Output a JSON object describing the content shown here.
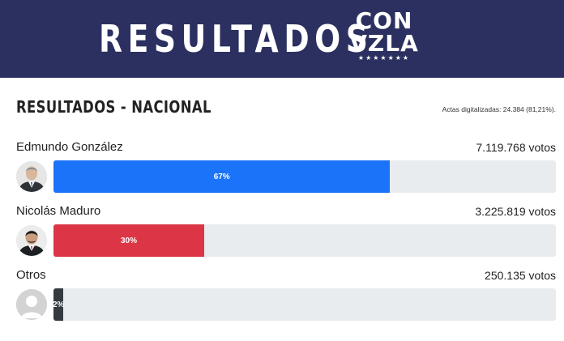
{
  "banner": {
    "title": "RESULTADOS",
    "logo_line1": "CON",
    "logo_line2": "VZLA",
    "logo_stars": "★★★★★★★",
    "background_color": "#2b3060"
  },
  "section": {
    "title": "RESULTADOS - NACIONAL",
    "actas": "Actas digitalizadas: 24.384 (81,21%)."
  },
  "candidates": [
    {
      "name": "Edmundo González",
      "votes": "7.119.768 votos",
      "percent_label": "67%",
      "percent": 67,
      "color": "#1a73f8",
      "avatar_icon": "candidate-photo-icon"
    },
    {
      "name": "Nicolás Maduro",
      "votes": "3.225.819 votos",
      "percent_label": "30%",
      "percent": 30,
      "color": "#dc3545",
      "avatar_icon": "candidate-photo-icon"
    },
    {
      "name": "Otros",
      "votes": "250.135 votos",
      "percent_label": "2%",
      "percent": 2,
      "color": "#343a40",
      "avatar_icon": "default-user-icon"
    }
  ]
}
